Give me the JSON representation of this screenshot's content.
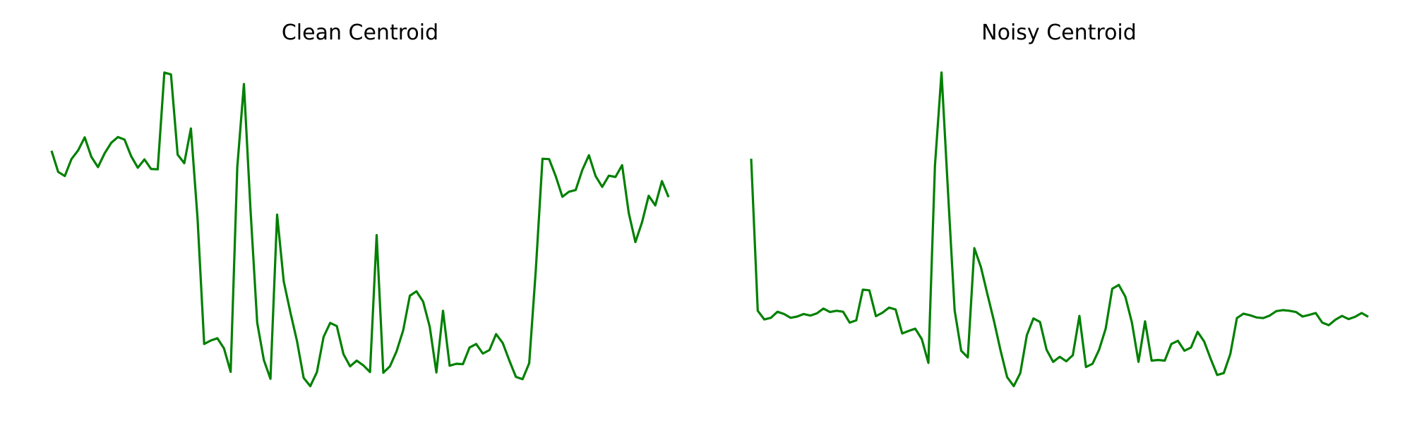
{
  "line_color": "#008000",
  "chart_data": [
    {
      "type": "line",
      "title": "Clean Centroid",
      "xlabel": "",
      "ylabel": "",
      "grid": false,
      "axes_visible": false,
      "ylim": [
        0,
        1
      ],
      "series": [
        {
          "values": [
            0.742,
            0.676,
            0.663,
            0.716,
            0.743,
            0.784,
            0.723,
            0.691,
            0.734,
            0.767,
            0.785,
            0.777,
            0.725,
            0.689,
            0.715,
            0.685,
            0.684,
            0.987,
            0.981,
            0.73,
            0.703,
            0.812,
            0.531,
            0.137,
            0.148,
            0.155,
            0.123,
            0.05,
            0.691,
            0.951,
            0.555,
            0.204,
            0.087,
            0.028,
            0.542,
            0.333,
            0.236,
            0.146,
            0.031,
            0.005,
            0.049,
            0.159,
            0.203,
            0.193,
            0.105,
            0.067,
            0.085,
            0.07,
            0.049,
            0.478,
            0.047,
            0.067,
            0.114,
            0.18,
            0.288,
            0.302,
            0.27,
            0.191,
            0.048,
            0.241,
            0.069,
            0.075,
            0.074,
            0.126,
            0.137,
            0.107,
            0.118,
            0.168,
            0.14,
            0.085,
            0.034,
            0.027,
            0.077,
            0.371,
            0.717,
            0.716,
            0.662,
            0.598,
            0.614,
            0.619,
            0.682,
            0.728,
            0.663,
            0.629,
            0.664,
            0.66,
            0.697,
            0.547,
            0.456,
            0.518,
            0.601,
            0.571,
            0.647,
            0.597
          ]
        }
      ]
    },
    {
      "type": "line",
      "title": "Noisy Centroid",
      "xlabel": "",
      "ylabel": "",
      "grid": false,
      "axes_visible": false,
      "ylim": [
        0,
        1
      ],
      "series": [
        {
          "values": [
            0.717,
            0.241,
            0.214,
            0.219,
            0.238,
            0.231,
            0.219,
            0.223,
            0.231,
            0.226,
            0.233,
            0.248,
            0.237,
            0.241,
            0.238,
            0.204,
            0.211,
            0.307,
            0.305,
            0.224,
            0.235,
            0.251,
            0.245,
            0.17,
            0.178,
            0.185,
            0.152,
            0.078,
            0.696,
            0.987,
            0.609,
            0.242,
            0.116,
            0.095,
            0.437,
            0.378,
            0.292,
            0.208,
            0.116,
            0.033,
            0.005,
            0.046,
            0.165,
            0.217,
            0.206,
            0.119,
            0.081,
            0.097,
            0.083,
            0.102,
            0.225,
            0.065,
            0.075,
            0.119,
            0.185,
            0.31,
            0.322,
            0.285,
            0.204,
            0.081,
            0.208,
            0.085,
            0.087,
            0.085,
            0.137,
            0.147,
            0.116,
            0.126,
            0.175,
            0.145,
            0.09,
            0.04,
            0.046,
            0.106,
            0.218,
            0.232,
            0.227,
            0.22,
            0.218,
            0.226,
            0.24,
            0.243,
            0.241,
            0.237,
            0.223,
            0.228,
            0.234,
            0.204,
            0.196,
            0.213,
            0.225,
            0.215,
            0.222,
            0.234,
            0.222
          ]
        }
      ]
    }
  ]
}
